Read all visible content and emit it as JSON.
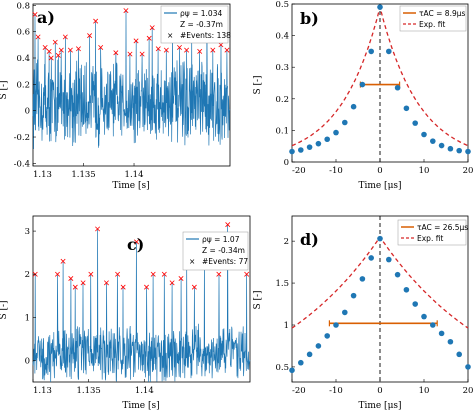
{
  "chart_data": [
    {
      "panel": "a)",
      "type": "line",
      "xlabel": "Time [s]",
      "ylabel": "S [-]",
      "xlim": [
        1.13,
        1.1495
      ],
      "ylim": [
        -0.42,
        0.81
      ],
      "xticks": [
        "1.13",
        "1.135",
        "1.14"
      ],
      "xtick_values": [
        1.13,
        1.135,
        1.14
      ],
      "yticks": [
        "-0.4",
        "-0.2",
        "0",
        "0.2",
        "0.4",
        "0.6",
        "0.8"
      ],
      "ytick_values": [
        -0.4,
        -0.2,
        0,
        0.2,
        0.4,
        0.6,
        0.8
      ],
      "legend_position": "top-right",
      "legend": [
        "ρψ = 1.034",
        "Z = -0.37m",
        "#Events: 138"
      ],
      "signal_color": "#1f77b4",
      "event_color": "#ff0000",
      "threshold": 0.4,
      "peaks": [
        [
          1.1302,
          0.73
        ],
        [
          1.1305,
          0.56
        ],
        [
          1.1312,
          0.48
        ],
        [
          1.1316,
          0.45
        ],
        [
          1.1318,
          0.4
        ],
        [
          1.1322,
          0.52
        ],
        [
          1.1325,
          0.42
        ],
        [
          1.1328,
          0.46
        ],
        [
          1.1332,
          0.56
        ],
        [
          1.1337,
          0.46
        ],
        [
          1.1345,
          0.47
        ],
        [
          1.1356,
          0.57
        ],
        [
          1.1362,
          0.68
        ],
        [
          1.1367,
          0.48
        ],
        [
          1.1382,
          0.44
        ],
        [
          1.1392,
          0.76
        ],
        [
          1.1396,
          0.43
        ],
        [
          1.1402,
          0.53
        ],
        [
          1.1408,
          0.43
        ],
        [
          1.1415,
          0.55
        ],
        [
          1.1418,
          0.63
        ],
        [
          1.1424,
          0.47
        ],
        [
          1.1432,
          0.46
        ],
        [
          1.1438,
          0.63
        ],
        [
          1.1445,
          0.48
        ],
        [
          1.1452,
          0.46
        ],
        [
          1.1457,
          0.56
        ],
        [
          1.1465,
          0.45
        ],
        [
          1.1472,
          0.73
        ],
        [
          1.1478,
          0.46
        ],
        [
          1.1486,
          0.5
        ],
        [
          1.1492,
          0.46
        ]
      ]
    },
    {
      "panel": "b)",
      "type": "scatter",
      "xlabel": "Time [μs]",
      "ylabel": "S [-]",
      "xlim": [
        -20,
        20
      ],
      "ylim": [
        0,
        0.5
      ],
      "xticks": [
        "-20",
        "-10",
        "0",
        "10",
        "20"
      ],
      "xtick_values": [
        -20,
        -10,
        0,
        10,
        20
      ],
      "yticks": [
        "0",
        "0.1",
        "0.2",
        "0.3",
        "0.4",
        "0.5"
      ],
      "ytick_values": [
        0,
        0.1,
        0.2,
        0.3,
        0.4,
        0.5
      ],
      "legend_position": "top-right",
      "legend": [
        "τAC = 8.9μs",
        "Exp. fit"
      ],
      "tau": 8.9,
      "peak": 0.49,
      "points_x": [
        -20,
        -18,
        -16,
        -14,
        -12,
        -10,
        -8,
        -6,
        -4,
        -2,
        0,
        2,
        4,
        6,
        8,
        10,
        12,
        14,
        16,
        18,
        20
      ],
      "points_y": [
        0.033,
        0.038,
        0.047,
        0.058,
        0.072,
        0.093,
        0.125,
        0.175,
        0.245,
        0.35,
        0.49,
        0.35,
        0.235,
        0.17,
        0.123,
        0.087,
        0.066,
        0.052,
        0.042,
        0.036,
        0.033
      ],
      "tau_bar": {
        "x": [
          -4.45,
          4.45
        ],
        "y": 0.245
      },
      "point_color": "#1f77b4",
      "fit_color": "#d62728",
      "bar_color": "#d95f02"
    },
    {
      "panel": "c)",
      "type": "line",
      "xlabel": "Time [s]",
      "ylabel": "S [-]",
      "xlim": [
        1.13,
        1.1495
      ],
      "ylim": [
        -0.5,
        3.35
      ],
      "xticks": [
        "1.13",
        "1.135",
        "1.14"
      ],
      "xtick_values": [
        1.13,
        1.135,
        1.14
      ],
      "yticks": [
        "0",
        "1",
        "2",
        "3"
      ],
      "ytick_values": [
        0,
        1,
        2,
        3
      ],
      "legend_position": "top-right",
      "legend": [
        "ρψ = 1.07",
        "Z = -0.34m",
        "#Events: 77"
      ],
      "signal_color": "#1f77b4",
      "event_color": "#ff0000",
      "threshold": 1.6,
      "peaks": [
        [
          1.1302,
          2.0
        ],
        [
          1.1322,
          2.0
        ],
        [
          1.1327,
          2.3
        ],
        [
          1.1334,
          1.9
        ],
        [
          1.1338,
          1.7
        ],
        [
          1.1345,
          1.8
        ],
        [
          1.1352,
          2.0
        ],
        [
          1.1358,
          3.05
        ],
        [
          1.1366,
          1.8
        ],
        [
          1.1376,
          2.0
        ],
        [
          1.1381,
          1.7
        ],
        [
          1.1393,
          2.75
        ],
        [
          1.1402,
          1.7
        ],
        [
          1.1408,
          2.0
        ],
        [
          1.1418,
          2.0
        ],
        [
          1.1425,
          1.8
        ],
        [
          1.1433,
          1.9
        ],
        [
          1.1438,
          2.2
        ],
        [
          1.1445,
          1.7
        ],
        [
          1.1454,
          2.35
        ],
        [
          1.1467,
          2.0
        ],
        [
          1.1475,
          3.15
        ],
        [
          1.1492,
          2.0
        ]
      ]
    },
    {
      "panel": "d)",
      "type": "scatter",
      "xlabel": "Time [μs]",
      "ylabel": "S [-]",
      "xlim": [
        -20,
        20
      ],
      "ylim": [
        0.32,
        2.3
      ],
      "xticks": [
        "-20",
        "-10",
        "0",
        "10",
        "20"
      ],
      "xtick_values": [
        -20,
        -10,
        0,
        10,
        20
      ],
      "yticks": [
        "0.5",
        "1",
        "1.5",
        "2"
      ],
      "ytick_values": [
        0.5,
        1,
        1.5,
        2
      ],
      "legend_position": "top-right",
      "legend": [
        "τAC = 26.5μs",
        "Exp. fit"
      ],
      "tau": 26.5,
      "peak": 2.05,
      "points_x": [
        -20,
        -18,
        -16,
        -14,
        -12,
        -10,
        -8,
        -6,
        -4,
        -2,
        0,
        2,
        4,
        6,
        8,
        10,
        12,
        14,
        16,
        18,
        20
      ],
      "points_y": [
        0.46,
        0.55,
        0.65,
        0.75,
        0.87,
        1.0,
        1.15,
        1.35,
        1.55,
        1.8,
        2.03,
        1.78,
        1.6,
        1.42,
        1.25,
        1.1,
        1.0,
        0.9,
        0.8,
        0.65,
        0.5
      ],
      "tau_bar": {
        "x": [
          -11.5,
          13.0
        ],
        "y": 1.02
      },
      "point_color": "#1f77b4",
      "fit_color": "#d62728",
      "bar_color": "#d95f02"
    }
  ]
}
